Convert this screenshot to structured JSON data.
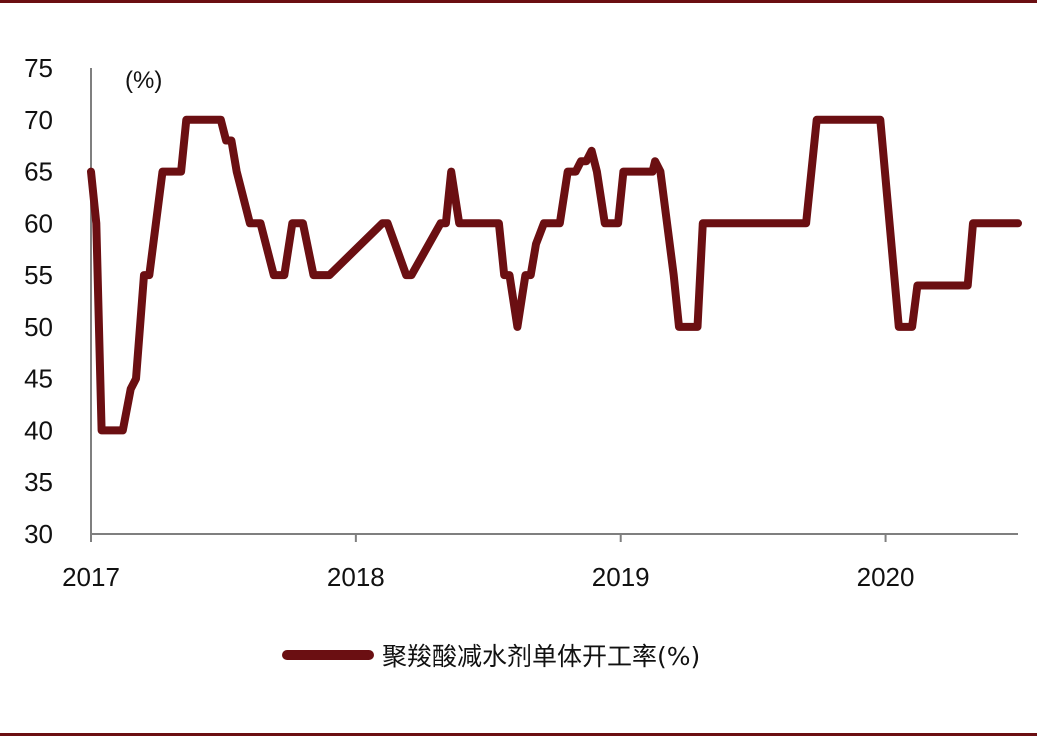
{
  "chart_data": {
    "type": "line",
    "title": "",
    "xlabel": "",
    "ylabel": "(%)",
    "xlim": [
      2017.0,
      2020.5
    ],
    "ylim": [
      30,
      75
    ],
    "yticks": [
      30,
      35,
      40,
      45,
      50,
      55,
      60,
      65,
      70,
      75
    ],
    "xticks": [
      {
        "value": 2017,
        "label": "2017"
      },
      {
        "value": 2018,
        "label": "2018"
      },
      {
        "value": 2019,
        "label": "2019"
      },
      {
        "value": 2020,
        "label": "2020"
      }
    ],
    "grid": false,
    "legend_position": "bottom-center",
    "colors": {
      "series": "#6b0f12",
      "axis": "#7f7f7f",
      "rule": "#6b0f12"
    },
    "series": [
      {
        "name": "聚羧酸减水剂单体开工率(%)",
        "x": [
          2017.0,
          2017.02,
          2017.04,
          2017.12,
          2017.15,
          2017.17,
          2017.2,
          2017.22,
          2017.27,
          2017.34,
          2017.36,
          2017.49,
          2017.51,
          2017.53,
          2017.55,
          2017.6,
          2017.64,
          2017.69,
          2017.73,
          2017.76,
          2017.8,
          2017.84,
          2017.9,
          2018.1,
          2018.12,
          2018.19,
          2018.21,
          2018.32,
          2018.34,
          2018.36,
          2018.39,
          2018.41,
          2018.54,
          2018.56,
          2018.58,
          2018.61,
          2018.64,
          2018.66,
          2018.68,
          2018.71,
          2018.77,
          2018.8,
          2018.83,
          2018.85,
          2018.87,
          2018.89,
          2018.91,
          2018.94,
          2018.99,
          2019.01,
          2019.12,
          2019.13,
          2019.15,
          2019.2,
          2019.22,
          2019.29,
          2019.31,
          2019.7,
          2019.74,
          2019.98,
          2020.05,
          2020.1,
          2020.12,
          2020.31,
          2020.33,
          2020.5
        ],
        "y": [
          65,
          60,
          40,
          40,
          44,
          45,
          55,
          55,
          65,
          65,
          70,
          70,
          68,
          68,
          65,
          60,
          60,
          55,
          55,
          60,
          60,
          55,
          55,
          60,
          60,
          55,
          55,
          60,
          60,
          65,
          60,
          60,
          60,
          55,
          55,
          50,
          55,
          55,
          58,
          60,
          60,
          65,
          65,
          66,
          66,
          67,
          65,
          60,
          60,
          65,
          65,
          66,
          65,
          55,
          50,
          50,
          60,
          60,
          70,
          70,
          50,
          50,
          54,
          54,
          60,
          60
        ]
      }
    ]
  }
}
